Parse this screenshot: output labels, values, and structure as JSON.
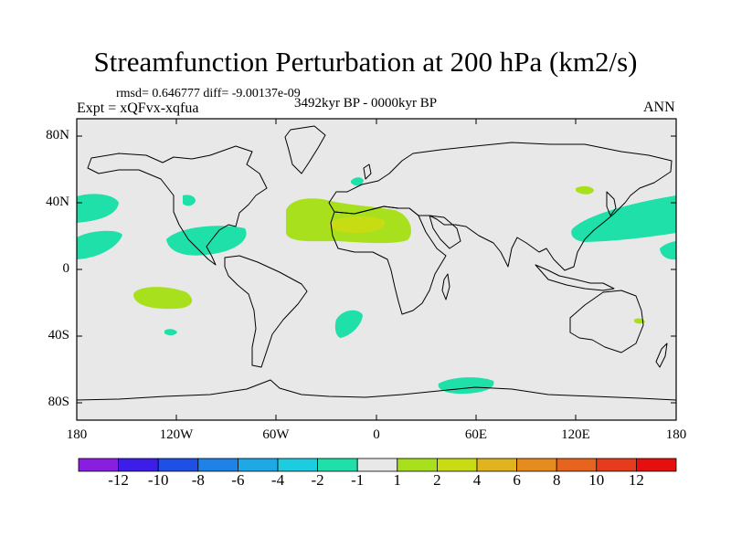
{
  "title": "Streamfunction Perturbation at 200 hPa (km2/s)",
  "stats": "rmsd= 0.646777 diff= -9.00137e-09",
  "experiment": "Expt = xQFvx-xqfua",
  "period": "3492kyr BP - 0000kyr BP",
  "season": "ANN",
  "y_axis_labels": [
    "80N",
    "40N",
    "0",
    "40S",
    "80S"
  ],
  "x_axis_labels": [
    "180",
    "120W",
    "60W",
    "0",
    "60E",
    "120E",
    "180"
  ],
  "colorbar": {
    "labels": [
      "-12",
      "-10",
      "-8",
      "-6",
      "-4",
      "-2",
      "-1",
      "1",
      "2",
      "4",
      "6",
      "8",
      "10",
      "12"
    ],
    "colors": [
      "#8a1ee0",
      "#3c1ee8",
      "#1e50e6",
      "#1e82e6",
      "#1ea8e6",
      "#1ecce0",
      "#1ee0a8",
      "#e8e8e8",
      "#a8e01e",
      "#c8dc14",
      "#e0b41e",
      "#e68c1e",
      "#e6641e",
      "#e63c1e",
      "#e60f0f"
    ]
  },
  "colors": {
    "land_background": "#e8e8e8",
    "negative_anomaly": "#1ee0a8",
    "positive_anomaly": "#a8e01e",
    "strong_positive": "#c8dc14"
  }
}
